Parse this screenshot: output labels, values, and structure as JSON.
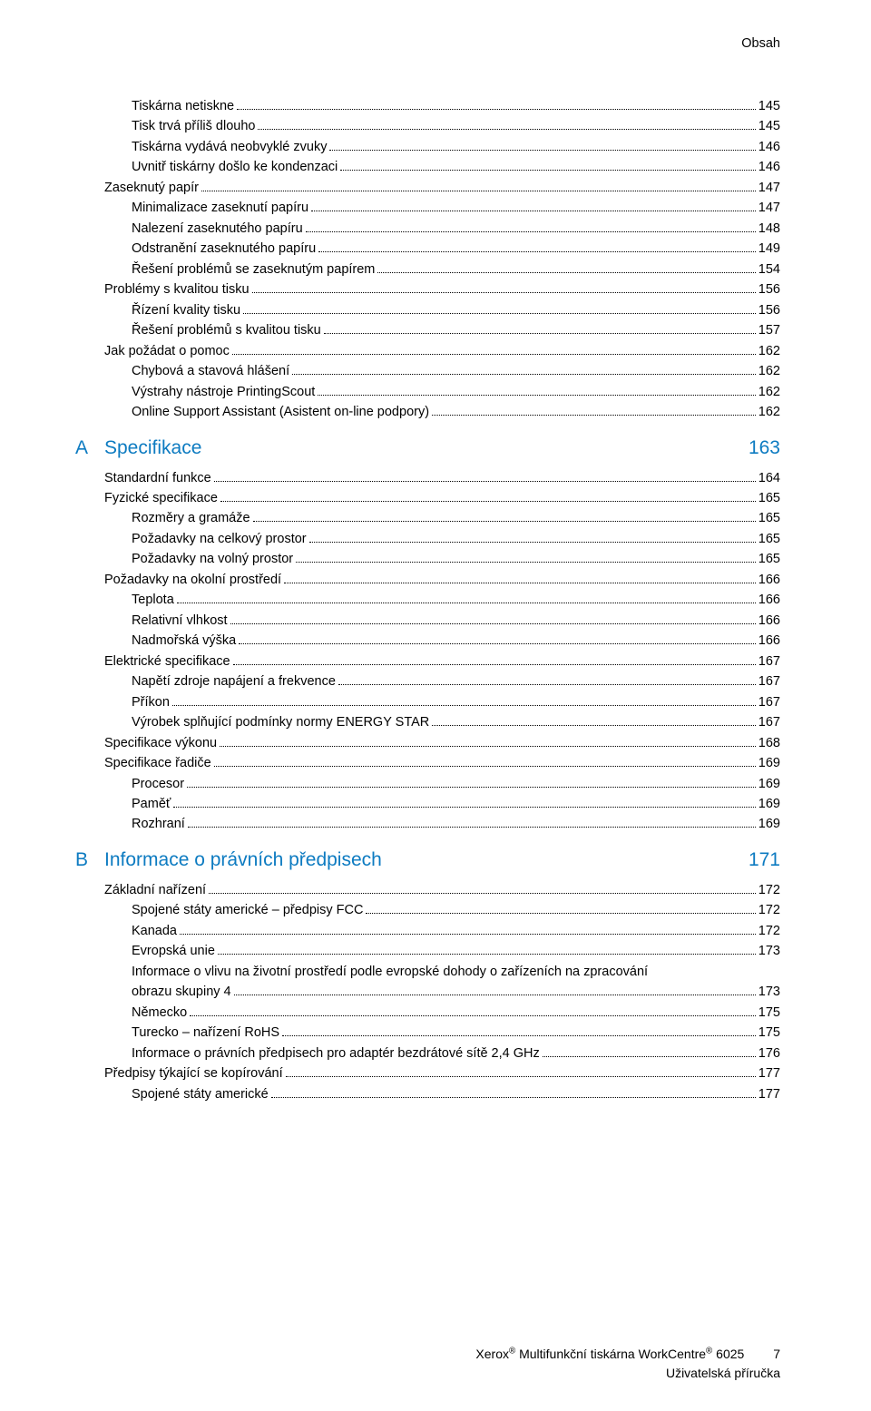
{
  "header": {
    "chapter_label": "Obsah"
  },
  "colors": {
    "section_heading": "#0d7bc1",
    "text": "#000000",
    "background": "#ffffff"
  },
  "typography": {
    "body_fontsize_pt": 11,
    "section_fontsize_pt": 16,
    "font_family": "Segoe UI"
  },
  "toc_groups": [
    {
      "section": null,
      "entries": [
        {
          "title": "Tiskárna netiskne",
          "page": "145",
          "indent": 2
        },
        {
          "title": "Tisk trvá příliš dlouho",
          "page": "145",
          "indent": 2
        },
        {
          "title": "Tiskárna vydává neobvyklé zvuky",
          "page": "146",
          "indent": 2
        },
        {
          "title": "Uvnitř tiskárny došlo ke kondenzaci",
          "page": "146",
          "indent": 2
        },
        {
          "title": "Zaseknutý papír",
          "page": "147",
          "indent": 1
        },
        {
          "title": "Minimalizace zaseknutí papíru",
          "page": "147",
          "indent": 2
        },
        {
          "title": "Nalezení zaseknutého papíru",
          "page": "148",
          "indent": 2
        },
        {
          "title": "Odstranění zaseknutého papíru",
          "page": "149",
          "indent": 2
        },
        {
          "title": "Řešení problémů se zaseknutým papírem",
          "page": "154",
          "indent": 2
        },
        {
          "title": "Problémy s kvalitou tisku",
          "page": "156",
          "indent": 1
        },
        {
          "title": "Řízení kvality tisku",
          "page": "156",
          "indent": 2
        },
        {
          "title": "Řešení problémů s kvalitou tisku",
          "page": "157",
          "indent": 2
        },
        {
          "title": "Jak požádat o pomoc",
          "page": "162",
          "indent": 1
        },
        {
          "title": "Chybová a stavová hlášení",
          "page": "162",
          "indent": 2
        },
        {
          "title": "Výstrahy nástroje PrintingScout",
          "page": "162",
          "indent": 2
        },
        {
          "title": "Online Support Assistant (Asistent on-line podpory)",
          "page": "162",
          "indent": 2
        }
      ]
    },
    {
      "section": {
        "letter": "A",
        "title": "Specifikace",
        "page": "163"
      },
      "entries": [
        {
          "title": "Standardní funkce",
          "page": "164",
          "indent": 1
        },
        {
          "title": "Fyzické specifikace",
          "page": "165",
          "indent": 1
        },
        {
          "title": "Rozměry a gramáže",
          "page": "165",
          "indent": 2
        },
        {
          "title": "Požadavky na celkový prostor",
          "page": "165",
          "indent": 2
        },
        {
          "title": "Požadavky na volný prostor",
          "page": "165",
          "indent": 2
        },
        {
          "title": "Požadavky na okolní prostředí",
          "page": "166",
          "indent": 1
        },
        {
          "title": "Teplota",
          "page": "166",
          "indent": 2
        },
        {
          "title": "Relativní vlhkost",
          "page": "166",
          "indent": 2
        },
        {
          "title": "Nadmořská výška",
          "page": "166",
          "indent": 2
        },
        {
          "title": "Elektrické specifikace",
          "page": "167",
          "indent": 1
        },
        {
          "title": "Napětí zdroje napájení a frekvence",
          "page": "167",
          "indent": 2
        },
        {
          "title": "Příkon",
          "page": "167",
          "indent": 2
        },
        {
          "title": "Výrobek splňující podmínky normy ENERGY STAR",
          "page": "167",
          "indent": 2
        },
        {
          "title": "Specifikace výkonu",
          "page": "168",
          "indent": 1
        },
        {
          "title": "Specifikace řadiče",
          "page": "169",
          "indent": 1
        },
        {
          "title": "Procesor",
          "page": "169",
          "indent": 2
        },
        {
          "title": "Paměť",
          "page": "169",
          "indent": 2
        },
        {
          "title": "Rozhraní",
          "page": "169",
          "indent": 2
        }
      ]
    },
    {
      "section": {
        "letter": "B",
        "title": "Informace o právních předpisech",
        "page": "171"
      },
      "entries": [
        {
          "title": "Základní nařízení",
          "page": "172",
          "indent": 1
        },
        {
          "title": "Spojené státy americké – předpisy FCC",
          "page": "172",
          "indent": 2
        },
        {
          "title": "Kanada",
          "page": "172",
          "indent": 2
        },
        {
          "title": "Evropská unie",
          "page": "173",
          "indent": 2
        },
        {
          "title": "Informace o vlivu na životní prostředí podle evropské dohody o zařízeních na zpracování",
          "wrap": "obrazu skupiny 4",
          "page": "173",
          "indent": 2
        },
        {
          "title": "Německo",
          "page": "175",
          "indent": 2
        },
        {
          "title": "Turecko – nařízení RoHS",
          "page": "175",
          "indent": 2
        },
        {
          "title": "Informace o právních předpisech pro adaptér bezdrátové sítě 2,4 GHz",
          "page": "176",
          "indent": 2
        },
        {
          "title": "Předpisy týkající se kopírování",
          "page": "177",
          "indent": 1
        },
        {
          "title": "Spojené státy americké",
          "page": "177",
          "indent": 2
        }
      ]
    }
  ],
  "footer": {
    "line1_prefix": "Xerox",
    "line1_mid": " Multifunkční tiskárna WorkCentre",
    "line1_suffix": " 6025",
    "page_number": "7",
    "line2": "Uživatelská příručka"
  }
}
